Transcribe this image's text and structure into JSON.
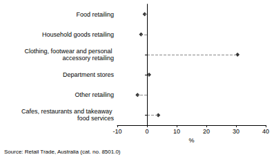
{
  "chart_data": {
    "type": "scatter",
    "orientation": "horizontal",
    "categories": [
      "Food retailing",
      "Household goods retailing",
      "Clothing, footwear and personal accessory retailing",
      "Department stores",
      "Other retailing",
      "Cafes, restaurants and takeaway food services"
    ],
    "values": [
      -0.8,
      -2.0,
      30.5,
      0.7,
      -3.2,
      3.8
    ],
    "color": "#000000",
    "marker": "diamond",
    "line_style": "dashed",
    "xlabel": "%",
    "xlim": [
      -10,
      40
    ],
    "xticks": [
      -10,
      0,
      10,
      20,
      30,
      40
    ],
    "grid": false,
    "annotation": "Source: Retail Trade, Australia (cat. no. 8501.0)"
  }
}
